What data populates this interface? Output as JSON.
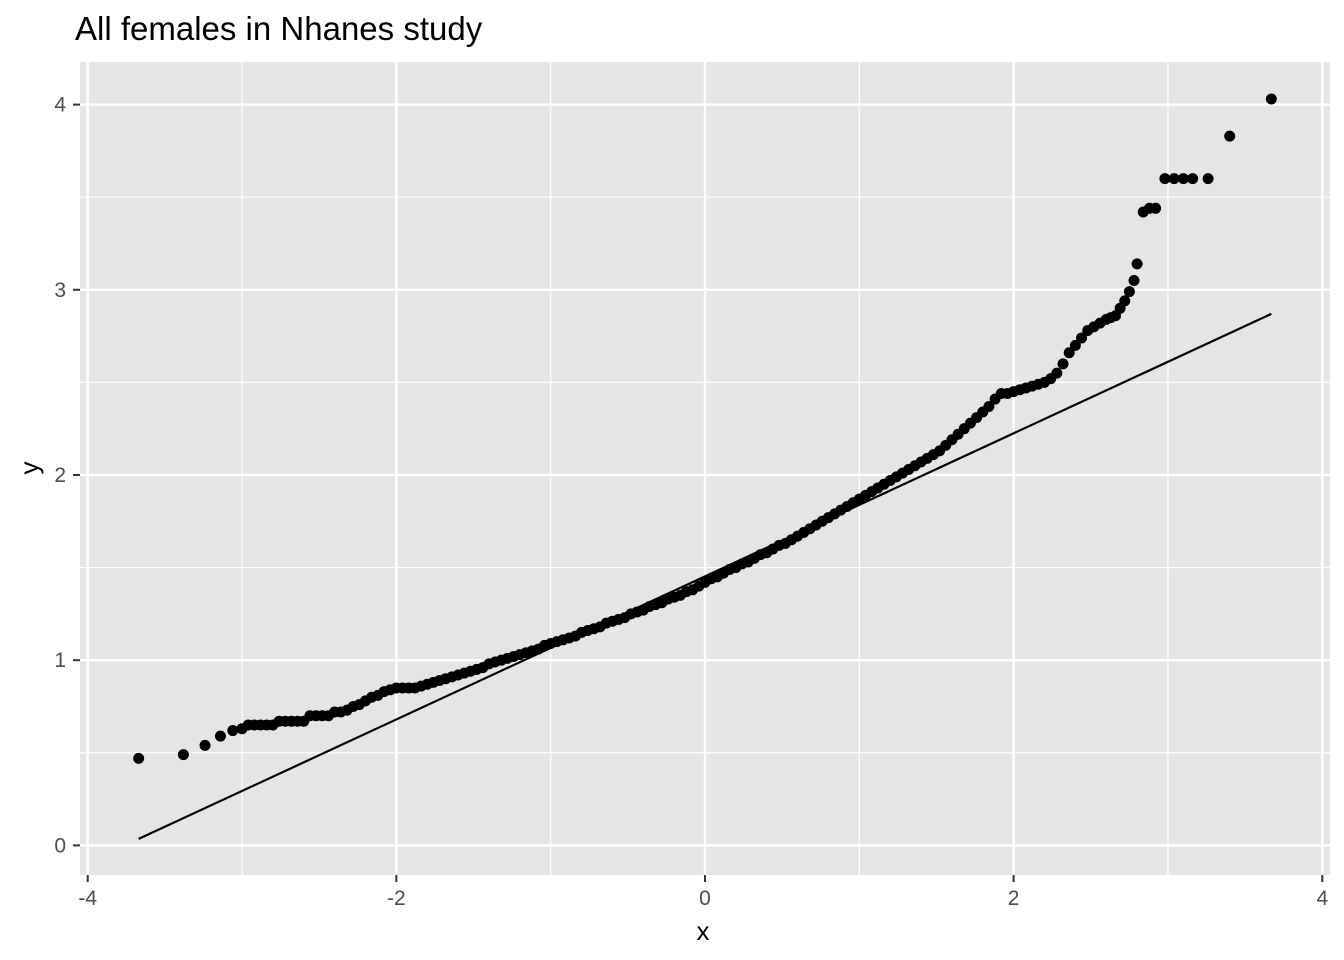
{
  "chart_data": {
    "type": "scatter",
    "title": "All females in Nhanes study",
    "xlabel": "x",
    "ylabel": "y",
    "xlim": [
      -4.05,
      4.05
    ],
    "ylim": [
      -0.16,
      4.23
    ],
    "x_ticks": [
      -4,
      -2,
      0,
      2,
      4
    ],
    "x_tick_labels": [
      "-4",
      "-2",
      "0",
      "2",
      "4"
    ],
    "y_ticks": [
      0,
      1,
      2,
      3,
      4
    ],
    "y_tick_labels": [
      "0",
      "1",
      "2",
      "3",
      "4"
    ],
    "grid": true,
    "background": "#e5e5e5",
    "grid_color": "#ffffff",
    "point_color": "#000000",
    "points": {
      "x": [
        -3.67,
        -3.38,
        -3.24,
        -3.14,
        -3.06,
        -3.0,
        -2.96,
        -2.92,
        -2.88,
        -2.84,
        -2.8,
        -2.76,
        -2.72,
        -2.68,
        -2.64,
        -2.6,
        -2.56,
        -2.52,
        -2.48,
        -2.44,
        -2.4,
        -2.36,
        -2.32,
        -2.28,
        -2.24,
        -2.2,
        -2.16,
        -2.12,
        -2.08,
        -2.04,
        -2.0,
        -1.96,
        -1.92,
        -1.88,
        -1.84,
        -1.8,
        -1.76,
        -1.72,
        -1.68,
        -1.64,
        -1.6,
        -1.56,
        -1.52,
        -1.48,
        -1.44,
        -1.4,
        -1.36,
        -1.32,
        -1.28,
        -1.24,
        -1.2,
        -1.16,
        -1.12,
        -1.08,
        -1.04,
        -1.0,
        -0.96,
        -0.92,
        -0.88,
        -0.84,
        -0.8,
        -0.76,
        -0.72,
        -0.68,
        -0.64,
        -0.6,
        -0.56,
        -0.52,
        -0.48,
        -0.44,
        -0.4,
        -0.36,
        -0.32,
        -0.28,
        -0.24,
        -0.2,
        -0.16,
        -0.12,
        -0.08,
        -0.04,
        0.0,
        0.04,
        0.08,
        0.12,
        0.16,
        0.2,
        0.24,
        0.28,
        0.32,
        0.36,
        0.4,
        0.44,
        0.48,
        0.52,
        0.56,
        0.6,
        0.64,
        0.68,
        0.72,
        0.76,
        0.8,
        0.84,
        0.88,
        0.92,
        0.96,
        1.0,
        1.04,
        1.08,
        1.12,
        1.16,
        1.2,
        1.24,
        1.28,
        1.32,
        1.36,
        1.4,
        1.44,
        1.48,
        1.52,
        1.56,
        1.6,
        1.64,
        1.68,
        1.72,
        1.76,
        1.8,
        1.84,
        1.88,
        1.92,
        1.96,
        2.0,
        2.04,
        2.08,
        2.12,
        2.16,
        2.2,
        2.24,
        2.28,
        2.32,
        2.36,
        2.4,
        2.44,
        2.48,
        2.52,
        2.56,
        2.6,
        2.63,
        2.66,
        2.69,
        2.72,
        2.75,
        2.78,
        2.8,
        2.84,
        2.88,
        2.92,
        2.98,
        3.04,
        3.1,
        3.16,
        3.26,
        3.4,
        3.67
      ],
      "y": [
        0.47,
        0.49,
        0.54,
        0.59,
        0.62,
        0.63,
        0.65,
        0.65,
        0.65,
        0.65,
        0.65,
        0.67,
        0.67,
        0.67,
        0.67,
        0.67,
        0.7,
        0.7,
        0.7,
        0.7,
        0.72,
        0.72,
        0.73,
        0.75,
        0.76,
        0.78,
        0.8,
        0.81,
        0.83,
        0.84,
        0.85,
        0.85,
        0.85,
        0.85,
        0.86,
        0.87,
        0.88,
        0.89,
        0.9,
        0.91,
        0.92,
        0.93,
        0.94,
        0.95,
        0.96,
        0.98,
        0.99,
        1.0,
        1.01,
        1.02,
        1.03,
        1.04,
        1.05,
        1.06,
        1.08,
        1.09,
        1.1,
        1.11,
        1.12,
        1.13,
        1.15,
        1.16,
        1.17,
        1.18,
        1.2,
        1.21,
        1.22,
        1.23,
        1.25,
        1.26,
        1.27,
        1.29,
        1.3,
        1.31,
        1.33,
        1.34,
        1.35,
        1.37,
        1.38,
        1.4,
        1.42,
        1.44,
        1.45,
        1.47,
        1.49,
        1.5,
        1.52,
        1.53,
        1.55,
        1.57,
        1.58,
        1.6,
        1.62,
        1.63,
        1.65,
        1.67,
        1.69,
        1.71,
        1.73,
        1.75,
        1.77,
        1.79,
        1.81,
        1.83,
        1.85,
        1.87,
        1.89,
        1.91,
        1.93,
        1.95,
        1.97,
        1.99,
        2.01,
        2.03,
        2.05,
        2.07,
        2.09,
        2.11,
        2.13,
        2.16,
        2.19,
        2.22,
        2.25,
        2.28,
        2.31,
        2.34,
        2.37,
        2.41,
        2.44,
        2.44,
        2.45,
        2.46,
        2.47,
        2.48,
        2.49,
        2.5,
        2.52,
        2.55,
        2.6,
        2.66,
        2.7,
        2.74,
        2.78,
        2.8,
        2.82,
        2.84,
        2.85,
        2.86,
        2.9,
        2.94,
        2.99,
        3.05,
        3.14,
        3.42,
        3.44,
        3.44,
        3.6,
        3.6,
        3.6,
        3.6,
        3.6,
        3.83,
        4.03
      ]
    },
    "reference_line": {
      "x": [
        -3.67,
        3.67
      ],
      "y": [
        0.035,
        2.87
      ]
    }
  }
}
